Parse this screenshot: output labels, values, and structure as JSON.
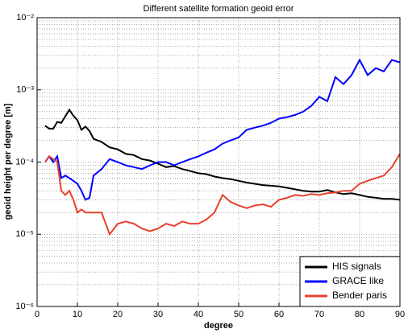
{
  "chart_data": {
    "type": "line",
    "title": "Different satellite formation geoid error",
    "x_label": "degree",
    "y_label": "geoid height per degree [m]",
    "x": [
      2,
      3,
      4,
      5,
      6,
      7,
      8,
      9,
      10,
      11,
      12,
      13,
      14,
      16,
      18,
      20,
      22,
      24,
      26,
      28,
      30,
      32,
      34,
      36,
      38,
      40,
      42,
      44,
      46,
      48,
      50,
      52,
      54,
      56,
      58,
      60,
      62,
      64,
      66,
      68,
      70,
      72,
      74,
      76,
      78,
      80,
      82,
      84,
      86,
      88,
      90
    ],
    "series": [
      {
        "name": "HIS signals",
        "color": "#000000",
        "values": [
          0.00032,
          0.00029,
          0.00029,
          0.00036,
          0.00035,
          0.00043,
          0.00053,
          0.00044,
          0.00038,
          0.00028,
          0.00031,
          0.00027,
          0.00021,
          0.00019,
          0.00016,
          0.00015,
          0.00013,
          0.000125,
          0.00011,
          0.000105,
          9.5e-05,
          8.5e-05,
          8.8e-05,
          8e-05,
          7.5e-05,
          7e-05,
          6.8e-05,
          6.3e-05,
          6e-05,
          5.8e-05,
          5.5e-05,
          5.2e-05,
          5e-05,
          4.8e-05,
          4.7e-05,
          4.6e-05,
          4.4e-05,
          4.2e-05,
          4e-05,
          3.9e-05,
          3.9e-05,
          4.1e-05,
          3.8e-05,
          3.6e-05,
          3.7e-05,
          3.5e-05,
          3.3e-05,
          3.2e-05,
          3.1e-05,
          3.1e-05,
          3e-05
        ]
      },
      {
        "name": "GRACE like",
        "color": "#0000ff",
        "values": [
          0.0001,
          0.00012,
          0.0001,
          0.00012,
          6e-05,
          6.5e-05,
          6e-05,
          5.5e-05,
          5e-05,
          4e-05,
          3e-05,
          3.2e-05,
          6.5e-05,
          8e-05,
          0.00011,
          0.0001,
          9e-05,
          8.5e-05,
          8e-05,
          9e-05,
          0.0001,
          0.0001,
          9e-05,
          0.0001,
          0.00011,
          0.00012,
          0.000135,
          0.00015,
          0.00018,
          0.0002,
          0.00022,
          0.00028,
          0.0003,
          0.00032,
          0.00035,
          0.0004,
          0.00042,
          0.00045,
          0.0005,
          0.0006,
          0.0008,
          0.0007,
          0.0015,
          0.0012,
          0.0016,
          0.0026,
          0.0016,
          0.002,
          0.0018,
          0.0026,
          0.0024
        ]
      },
      {
        "name": "Bender paris",
        "color": "#e8412c",
        "values": [
          0.0001,
          0.00012,
          0.00011,
          0.0001,
          4e-05,
          3.5e-05,
          4e-05,
          3e-05,
          2e-05,
          2.2e-05,
          2e-05,
          2e-05,
          2e-05,
          2e-05,
          1e-05,
          1.4e-05,
          1.5e-05,
          1.4e-05,
          1.2e-05,
          1.1e-05,
          1.2e-05,
          1.4e-05,
          1.3e-05,
          1.5e-05,
          1.4e-05,
          1.4e-05,
          1.6e-05,
          2e-05,
          3.5e-05,
          2.8e-05,
          2.5e-05,
          2.3e-05,
          2.5e-05,
          2.6e-05,
          2.4e-05,
          3e-05,
          3.2e-05,
          3.5e-05,
          3.4e-05,
          3.6e-05,
          3.5e-05,
          3.7e-05,
          3.8e-05,
          4e-05,
          4e-05,
          5e-05,
          5.5e-05,
          6e-05,
          6.5e-05,
          8.5e-05,
          0.00013
        ]
      }
    ],
    "xlim": [
      0,
      90
    ],
    "xticks": [
      0,
      10,
      20,
      30,
      40,
      50,
      60,
      70,
      80,
      90
    ],
    "ylim": [
      1e-06,
      0.01
    ],
    "log_y": true,
    "yticks": [
      {
        "value": 1e-06,
        "label": "10⁻⁶"
      },
      {
        "value": 1e-05,
        "label": "10⁻⁵"
      },
      {
        "value": 0.0001,
        "label": "10⁻⁴"
      },
      {
        "value": 0.001,
        "label": "10⁻³"
      },
      {
        "value": 0.01,
        "label": "10⁻²"
      }
    ],
    "grid": true,
    "legend": "lower right"
  }
}
